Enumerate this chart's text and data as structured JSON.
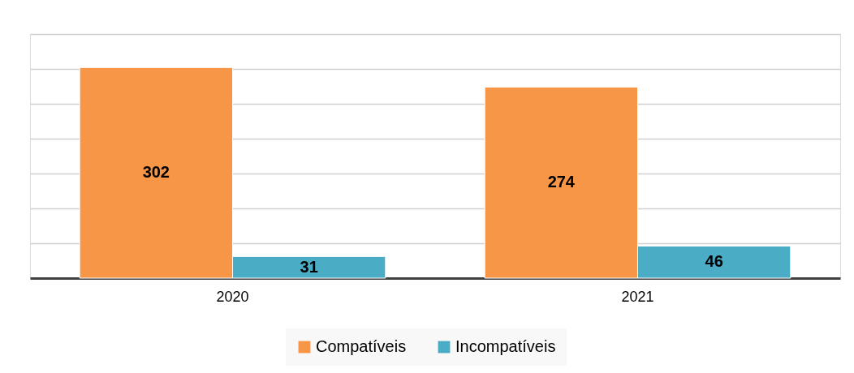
{
  "chart_data": {
    "type": "bar",
    "categories": [
      "2020",
      "2021"
    ],
    "series": [
      {
        "name": "Compatíveis",
        "color": "#f79646",
        "values": [
          302,
          274
        ]
      },
      {
        "name": "Incompatíveis",
        "color": "#4bacc6",
        "values": [
          31,
          46
        ]
      }
    ],
    "ylim": [
      0,
      350
    ],
    "yticks": [
      {
        "value": 0,
        "label": null
      },
      {
        "value": 50,
        "label": null
      },
      {
        "value": 100,
        "label": null
      },
      {
        "value": 150,
        "label": null
      },
      {
        "value": 200,
        "label": null
      },
      {
        "value": 250,
        "label": null
      },
      {
        "value": 300,
        "label": null
      },
      {
        "value": 350,
        "label": null
      }
    ],
    "grid": "y",
    "tick_labels": "x",
    "legend": "bottom",
    "data_labels": true
  }
}
